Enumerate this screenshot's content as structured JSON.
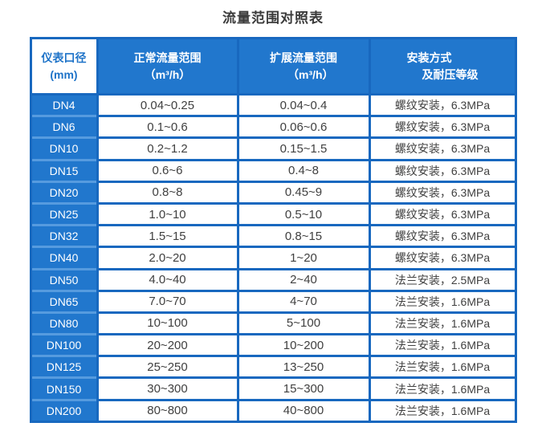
{
  "title": "流量范围对照表",
  "colors": {
    "frame_blue": "#1868bf",
    "cell_blue": "#2177cd",
    "light_divider_blue": "#569bdf",
    "header_col1_text_blue": "#1e73c8",
    "data_text": "#404040"
  },
  "table": {
    "header": {
      "diameter_line1": "仪表口径",
      "diameter_line2": "(mm)",
      "normal_line1": "正常流量范围",
      "normal_line2": "（m³/h）",
      "extended_line1": "扩展流量范围",
      "extended_line2": "（m³/h）",
      "install_line1": "安装方式",
      "install_line2": "及耐压等级"
    },
    "rows": [
      {
        "dn": "DN4",
        "normal": "0.04~0.25",
        "extended": "0.04~0.4",
        "install": "螺纹安装，6.3MPa"
      },
      {
        "dn": "DN6",
        "normal": "0.1~0.6",
        "extended": "0.06~0.6",
        "install": "螺纹安装，6.3MPa"
      },
      {
        "dn": "DN10",
        "normal": "0.2~1.2",
        "extended": "0.15~1.5",
        "install": "螺纹安装，6.3MPa"
      },
      {
        "dn": "DN15",
        "normal": "0.6~6",
        "extended": "0.4~8",
        "install": "螺纹安装，6.3MPa"
      },
      {
        "dn": "DN20",
        "normal": "0.8~8",
        "extended": "0.45~9",
        "install": "螺纹安装，6.3MPa"
      },
      {
        "dn": "DN25",
        "normal": "1.0~10",
        "extended": "0.5~10",
        "install": "螺纹安装，6.3MPa"
      },
      {
        "dn": "DN32",
        "normal": "1.5~15",
        "extended": "0.8~15",
        "install": "螺纹安装，6.3MPa"
      },
      {
        "dn": "DN40",
        "normal": "2.0~20",
        "extended": "1~20",
        "install": "螺纹安装，6.3MPa"
      },
      {
        "dn": "DN50",
        "normal": "4.0~40",
        "extended": "2~40",
        "install": "法兰安装，2.5MPa"
      },
      {
        "dn": "DN65",
        "normal": "7.0~70",
        "extended": "4~70",
        "install": "法兰安装，1.6MPa"
      },
      {
        "dn": "DN80",
        "normal": "10~100",
        "extended": "5~100",
        "install": "法兰安装，1.6MPa"
      },
      {
        "dn": "DN100",
        "normal": "20~200",
        "extended": "10~200",
        "install": "法兰安装，1.6MPa"
      },
      {
        "dn": "DN125",
        "normal": "25~250",
        "extended": "13~250",
        "install": "法兰安装，1.6MPa"
      },
      {
        "dn": "DN150",
        "normal": "30~300",
        "extended": "15~300",
        "install": "法兰安装，1.6MPa"
      },
      {
        "dn": "DN200",
        "normal": "80~800",
        "extended": "40~800",
        "install": "法兰安装，1.6MPa"
      }
    ]
  }
}
